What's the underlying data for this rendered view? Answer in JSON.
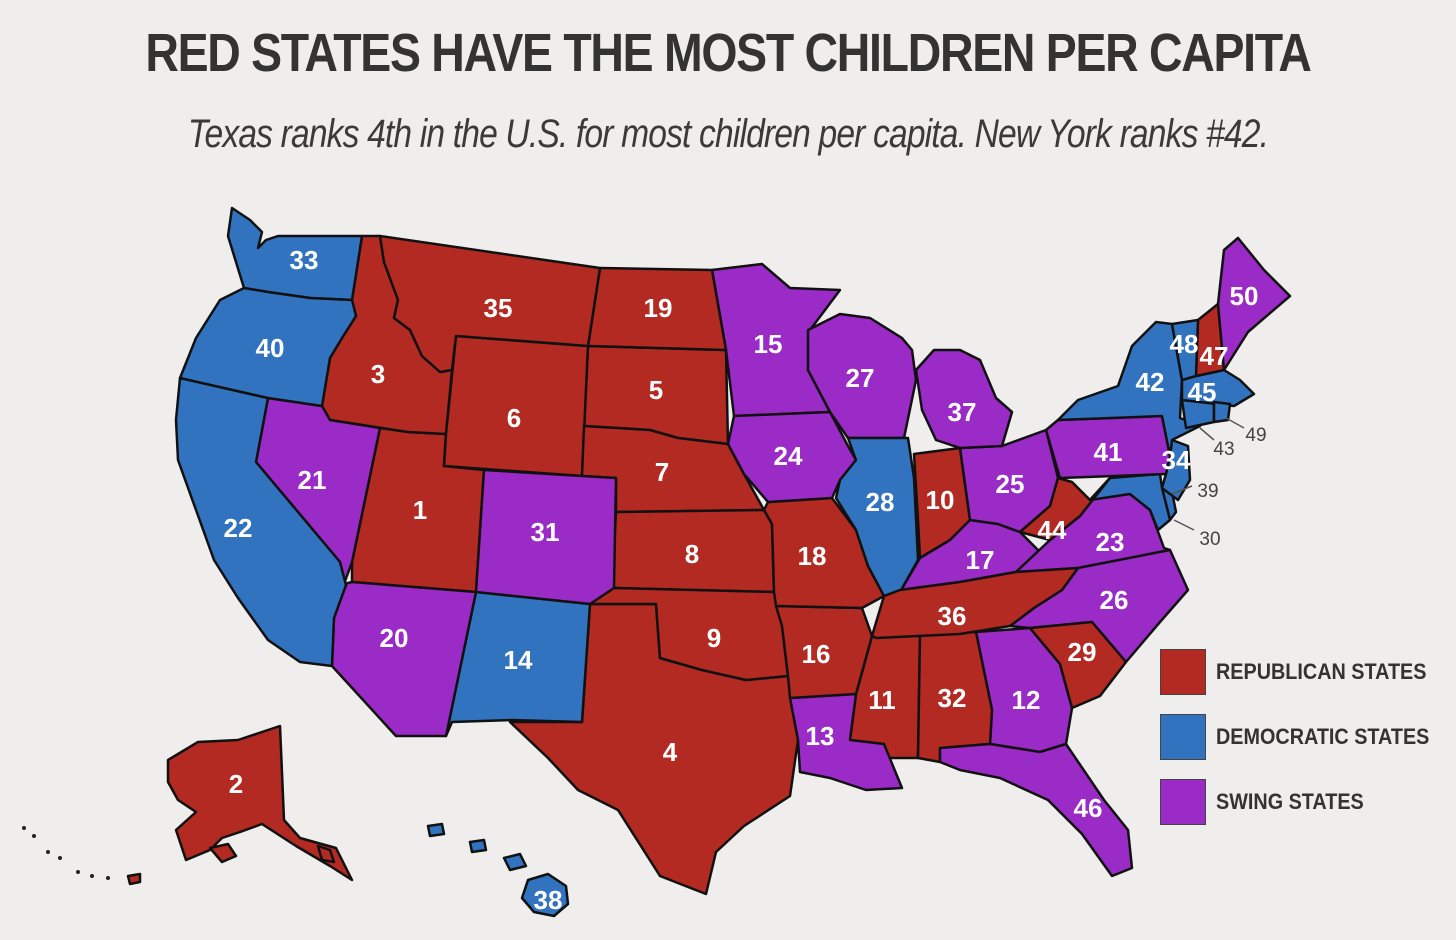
{
  "title": "RED STATES HAVE THE MOST CHILDREN PER CAPITA",
  "subtitle": "Texas ranks 4th in the U.S. for most children per capita. New York ranks #42.",
  "colors": {
    "republican": "#b32a22",
    "democratic": "#3273c0",
    "swing": "#9b2bc6"
  },
  "legend": [
    {
      "label": "REPUBLICAN STATES",
      "party": "republican"
    },
    {
      "label": "DEMOCRATIC STATES",
      "party": "democratic"
    },
    {
      "label": "SWING STATES",
      "party": "swing"
    }
  ],
  "states": [
    {
      "state": "Utah",
      "rank": 1,
      "party": "republican"
    },
    {
      "state": "Alaska",
      "rank": 2,
      "party": "republican"
    },
    {
      "state": "Idaho",
      "rank": 3,
      "party": "republican"
    },
    {
      "state": "Texas",
      "rank": 4,
      "party": "republican"
    },
    {
      "state": "South Dakota",
      "rank": 5,
      "party": "republican"
    },
    {
      "state": "Wyoming",
      "rank": 6,
      "party": "republican"
    },
    {
      "state": "Nebraska",
      "rank": 7,
      "party": "republican"
    },
    {
      "state": "Kansas",
      "rank": 8,
      "party": "republican"
    },
    {
      "state": "Oklahoma",
      "rank": 9,
      "party": "republican"
    },
    {
      "state": "Indiana",
      "rank": 10,
      "party": "republican"
    },
    {
      "state": "Mississippi",
      "rank": 11,
      "party": "republican"
    },
    {
      "state": "Georgia",
      "rank": 12,
      "party": "swing"
    },
    {
      "state": "Louisiana",
      "rank": 13,
      "party": "swing"
    },
    {
      "state": "New Mexico",
      "rank": 14,
      "party": "democratic"
    },
    {
      "state": "Minnesota",
      "rank": 15,
      "party": "swing"
    },
    {
      "state": "Arkansas",
      "rank": 16,
      "party": "republican"
    },
    {
      "state": "Kentucky",
      "rank": 17,
      "party": "swing"
    },
    {
      "state": "Missouri",
      "rank": 18,
      "party": "republican"
    },
    {
      "state": "North Dakota",
      "rank": 19,
      "party": "republican"
    },
    {
      "state": "Arizona",
      "rank": 20,
      "party": "swing"
    },
    {
      "state": "Nevada",
      "rank": 21,
      "party": "swing"
    },
    {
      "state": "California",
      "rank": 22,
      "party": "democratic"
    },
    {
      "state": "Virginia",
      "rank": 23,
      "party": "swing"
    },
    {
      "state": "Iowa",
      "rank": 24,
      "party": "swing"
    },
    {
      "state": "Ohio",
      "rank": 25,
      "party": "swing"
    },
    {
      "state": "North Carolina",
      "rank": 26,
      "party": "swing"
    },
    {
      "state": "Wisconsin",
      "rank": 27,
      "party": "swing"
    },
    {
      "state": "Illinois",
      "rank": 28,
      "party": "democratic"
    },
    {
      "state": "South Carolina",
      "rank": 29,
      "party": "republican"
    },
    {
      "state": "Delaware",
      "rank": 30,
      "party": "democratic"
    },
    {
      "state": "Colorado",
      "rank": 31,
      "party": "swing"
    },
    {
      "state": "Alabama",
      "rank": 32,
      "party": "republican"
    },
    {
      "state": "Washington",
      "rank": 33,
      "party": "democratic"
    },
    {
      "state": "New Jersey",
      "rank": 34,
      "party": "democratic"
    },
    {
      "state": "Montana",
      "rank": 35,
      "party": "republican"
    },
    {
      "state": "Tennessee",
      "rank": 36,
      "party": "republican"
    },
    {
      "state": "Michigan",
      "rank": 37,
      "party": "swing"
    },
    {
      "state": "Hawaii",
      "rank": 38,
      "party": "democratic"
    },
    {
      "state": "Maryland",
      "rank": 39,
      "party": "democratic"
    },
    {
      "state": "Oregon",
      "rank": 40,
      "party": "democratic"
    },
    {
      "state": "Pennsylvania",
      "rank": 41,
      "party": "swing"
    },
    {
      "state": "New York",
      "rank": 42,
      "party": "democratic"
    },
    {
      "state": "Connecticut",
      "rank": 43,
      "party": "democratic"
    },
    {
      "state": "West Virginia",
      "rank": 44,
      "party": "republican"
    },
    {
      "state": "Massachusetts",
      "rank": 45,
      "party": "democratic"
    },
    {
      "state": "Florida",
      "rank": 46,
      "party": "swing"
    },
    {
      "state": "New Hampshire",
      "rank": 47,
      "party": "republican"
    },
    {
      "state": "Vermont",
      "rank": 48,
      "party": "democratic"
    },
    {
      "state": "Rhode Island",
      "rank": 49,
      "party": "democratic"
    },
    {
      "state": "Maine",
      "rank": 50,
      "party": "swing"
    }
  ]
}
